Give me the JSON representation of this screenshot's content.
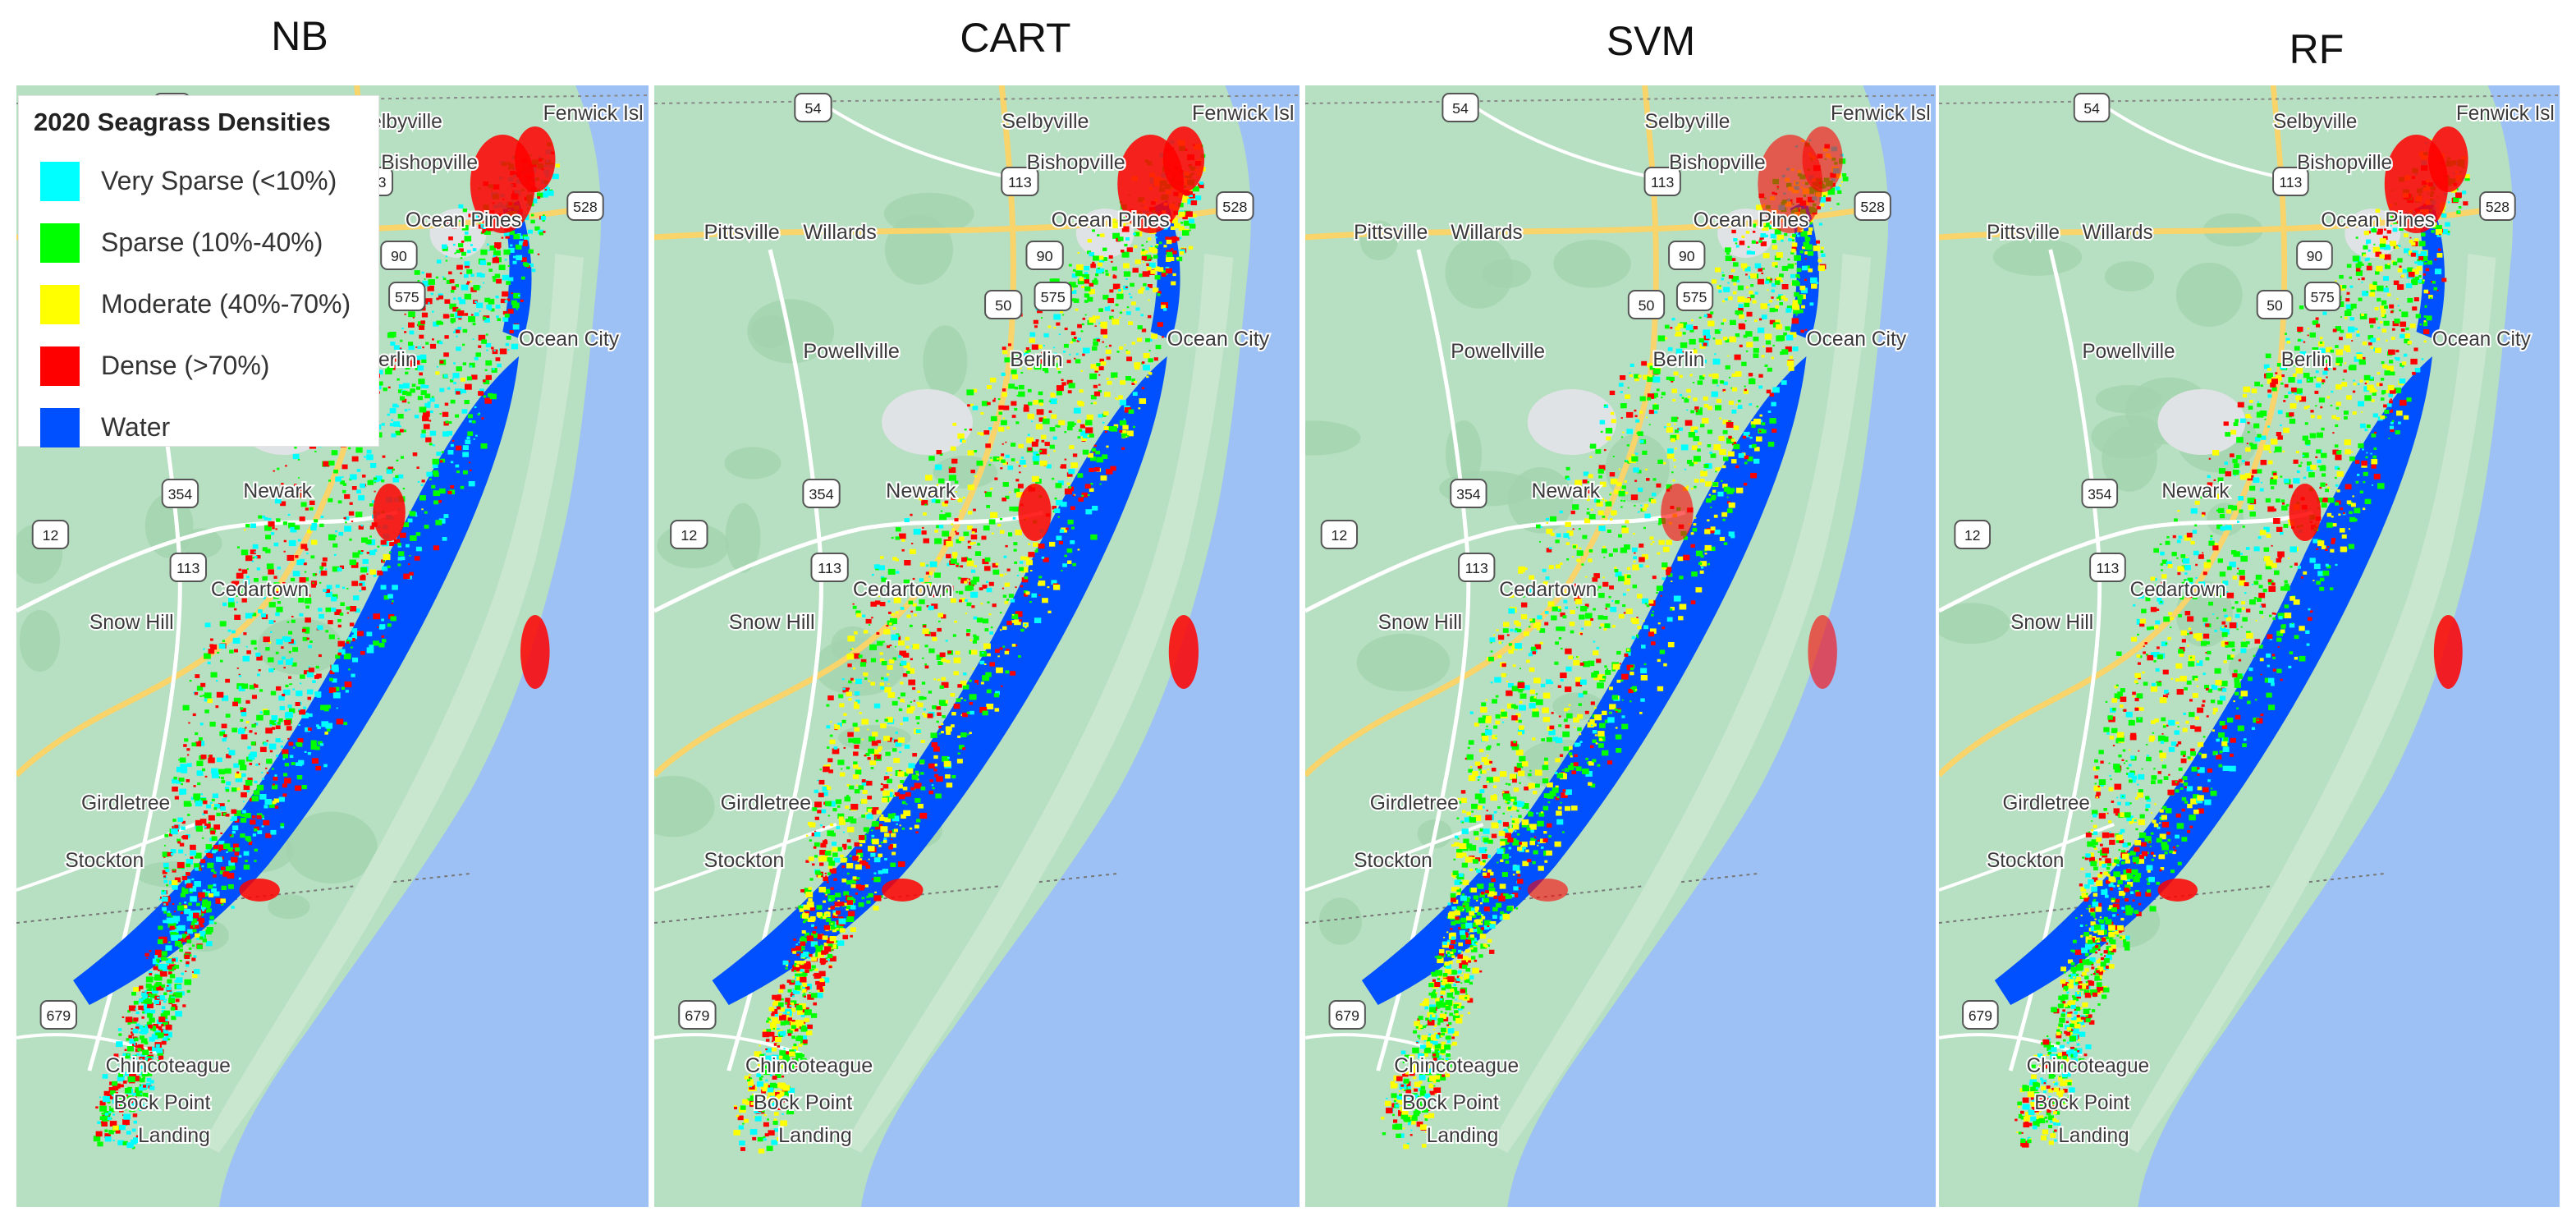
{
  "panels": [
    {
      "id": "nb",
      "title": "NB"
    },
    {
      "id": "cart",
      "title": "CART"
    },
    {
      "id": "svm",
      "title": "SVM"
    },
    {
      "id": "rf",
      "title": "RF"
    }
  ],
  "legend": {
    "title": "2020 Seagrass Densities",
    "items": [
      {
        "label": "Very Sparse (<10%)",
        "color": "#00ffff"
      },
      {
        "label": "Sparse (10%-40%)",
        "color": "#00ff00"
      },
      {
        "label": "Moderate (40%-70%)",
        "color": "#ffff00"
      },
      {
        "label": "Dense (>70%)",
        "color": "#ff0000"
      },
      {
        "label": "Water",
        "color": "#0050ff"
      }
    ]
  },
  "map_labels": {
    "selbyville": "Selbyville",
    "fenwick": "Fenwick Isl",
    "bishopville": "Bishopville",
    "ocean_pines": "Ocean Pines",
    "pittsville": "Pittsville",
    "willards": "Willards",
    "powellville": "Powellville",
    "berlin": "Berlin",
    "ocean_city": "Ocean City",
    "newark": "Newark",
    "cedartown": "Cedartown",
    "snow_hill": "Snow Hill",
    "girdletree": "Girdletree",
    "stockton": "Stockton",
    "chincoteague": "Chincoteague",
    "bock_point": "Bock Point",
    "landing": "Landing"
  },
  "route_shields": [
    "54",
    "113",
    "90",
    "50",
    "575",
    "528",
    "354",
    "12",
    "113",
    "679"
  ],
  "colors": {
    "land": "#b7dfc1",
    "ocean": "#9dc1f4",
    "road_major": "#f9d46a",
    "road_minor": "#ffffff"
  }
}
